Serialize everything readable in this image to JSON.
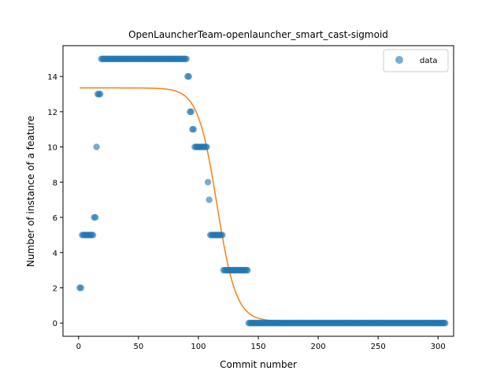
{
  "chart_data": {
    "type": "scatter",
    "title": "OpenLauncherTeam-openlauncher_smart_cast-sigmoid",
    "xlabel": "Commit number",
    "ylabel": "Number of instance of a feature",
    "xlim": [
      -13,
      313
    ],
    "ylim": [
      -0.75,
      15.75
    ],
    "xticks": [
      0,
      50,
      100,
      150,
      200,
      250,
      300
    ],
    "yticks": [
      0,
      2,
      4,
      6,
      8,
      10,
      12,
      14
    ],
    "legend": {
      "placement": "top-right",
      "entries": [
        "data"
      ]
    },
    "grid": false,
    "colors": {
      "data": "#1f77b4",
      "fit": "#ff7f0e"
    },
    "series": [
      {
        "name": "data",
        "type": "scatter",
        "segments": [
          {
            "x_start": 1,
            "x_end": 2,
            "y": 2
          },
          {
            "x_start": 3,
            "x_end": 12,
            "y": 5
          },
          {
            "x_start": 13,
            "x_end": 14,
            "y": 6
          },
          {
            "x_start": 15,
            "x_end": 15,
            "y": 10
          },
          {
            "x_start": 16,
            "x_end": 18,
            "y": 13
          },
          {
            "x_start": 19,
            "x_end": 90,
            "y": 15
          },
          {
            "x_start": 91,
            "x_end": 92,
            "y": 14
          },
          {
            "x_start": 93,
            "x_end": 94,
            "y": 12
          },
          {
            "x_start": 95,
            "x_end": 96,
            "y": 11
          },
          {
            "x_start": 97,
            "x_end": 107,
            "y": 10
          },
          {
            "x_start": 108,
            "x_end": 108,
            "y": 8
          },
          {
            "x_start": 109,
            "x_end": 109,
            "y": 7
          },
          {
            "x_start": 110,
            "x_end": 120,
            "y": 5
          },
          {
            "x_start": 121,
            "x_end": 141,
            "y": 3
          },
          {
            "x_start": 142,
            "x_end": 306,
            "y": 0
          }
        ]
      },
      {
        "name": "fit",
        "type": "line",
        "model": "sigmoid",
        "params": {
          "L": 13.25,
          "x0": 115.5,
          "k": 0.125,
          "b": 0.1
        },
        "x_range": [
          1,
          306
        ]
      }
    ]
  }
}
